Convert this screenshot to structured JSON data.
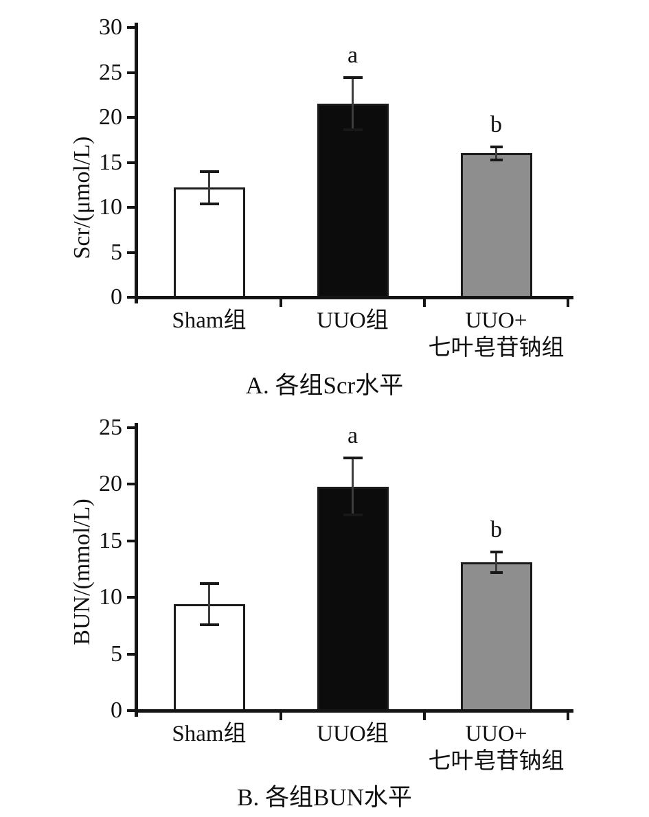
{
  "figure": {
    "background_color": "#ffffff",
    "axis_color": "#151515",
    "error_bar_line_color": "#3d3d3d",
    "error_bar_cap_color": "#181818",
    "text_color": "#111111"
  },
  "chart_data": [
    {
      "type": "bar",
      "panel": "A",
      "title": "A. 各组Scr水平",
      "ylabel": "Scr/(μmol/L)",
      "xlabel": "",
      "ylim": [
        0,
        30
      ],
      "ytick_interval": 5,
      "yticks": [
        0,
        5,
        10,
        15,
        20,
        25,
        30
      ],
      "grid": false,
      "legend": null,
      "categories": [
        "Sham组",
        "UUO组",
        "UUO+七叶皂苷钠组"
      ],
      "category_label_lines": [
        [
          "Sham组"
        ],
        [
          "UUO组"
        ],
        [
          "UUO+",
          "七叶皂苷钠组"
        ]
      ],
      "values": [
        12.2,
        21.5,
        16.0
      ],
      "errors": [
        1.8,
        2.9,
        0.7
      ],
      "sig_letters": [
        "",
        "a",
        "b"
      ],
      "bar_colors": [
        "#ffffff",
        "#0c0c0c",
        "#8e8e8e"
      ],
      "bar_border_color": "#1a1a1a"
    },
    {
      "type": "bar",
      "panel": "B",
      "title": "B. 各组BUN水平",
      "ylabel": "BUN/(mmol/L)",
      "xlabel": "",
      "ylim": [
        0,
        25
      ],
      "ytick_interval": 5,
      "yticks": [
        0,
        5,
        10,
        15,
        20,
        25
      ],
      "grid": false,
      "legend": null,
      "categories": [
        "Sham组",
        "UUO组",
        "UUO+七叶皂苷钠组"
      ],
      "category_label_lines": [
        [
          "Sham组"
        ],
        [
          "UUO组"
        ],
        [
          "UUO+",
          "七叶皂苷钠组"
        ]
      ],
      "values": [
        9.4,
        19.8,
        13.1
      ],
      "errors": [
        1.8,
        2.5,
        0.9
      ],
      "sig_letters": [
        "",
        "a",
        "b"
      ],
      "bar_colors": [
        "#ffffff",
        "#0c0c0c",
        "#8e8e8e"
      ],
      "bar_border_color": "#1a1a1a"
    }
  ]
}
